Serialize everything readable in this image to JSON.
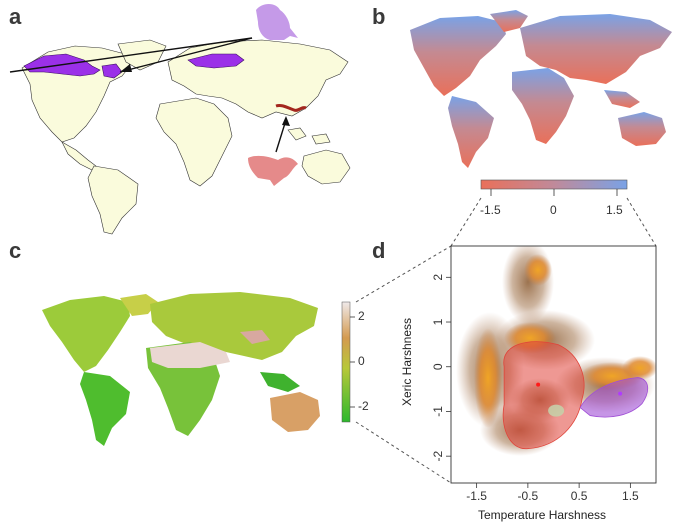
{
  "figure": {
    "panels": [
      {
        "letter": "a"
      },
      {
        "letter": "b"
      },
      {
        "letter": "c"
      },
      {
        "letter": "d"
      }
    ]
  },
  "panel_b": {
    "colorbar_ticks": [
      "-1.5",
      "0",
      "1.5"
    ],
    "colors": {
      "low": "#e9705a",
      "mid": "#b58c8c",
      "high": "#7aa2e6"
    }
  },
  "panel_c": {
    "colorbar_ticks": [
      "2",
      "0",
      "-2"
    ],
    "colors": {
      "low": "#2db82d",
      "mid": "#b8c83a",
      "high": "#efe9ea"
    }
  },
  "panel_d": {
    "xlabel": "Temperature Harshness",
    "ylabel": "Xeric Harshness",
    "x_ticks": [
      "-1.5",
      "-0.5",
      "0.5",
      "1.5"
    ],
    "y_ticks": [
      "2",
      "1",
      "0",
      "-1",
      "-2"
    ],
    "colors": {
      "red_species": "#e0443a",
      "purple_species": "#a04fd6"
    }
  },
  "chart_data": {
    "type": "scatter",
    "xlabel": "Temperature Harshness",
    "ylabel": "Xeric Harshness",
    "xlim": [
      -2.0,
      2.0
    ],
    "ylim": [
      -2.6,
      2.7
    ],
    "x_ticks": [
      -1.5,
      -0.5,
      0.5,
      1.5
    ],
    "y_ticks": [
      -2,
      -1,
      0,
      1,
      2
    ],
    "series": [
      {
        "values": [
          {
            "x": -0.3,
            "y": -0.4
          }
        ],
        "color": "#e0443a"
      },
      {
        "values": [
          {
            "x": 1.3,
            "y": -0.6
          }
        ],
        "color": "#a04fd6"
      }
    ]
  }
}
